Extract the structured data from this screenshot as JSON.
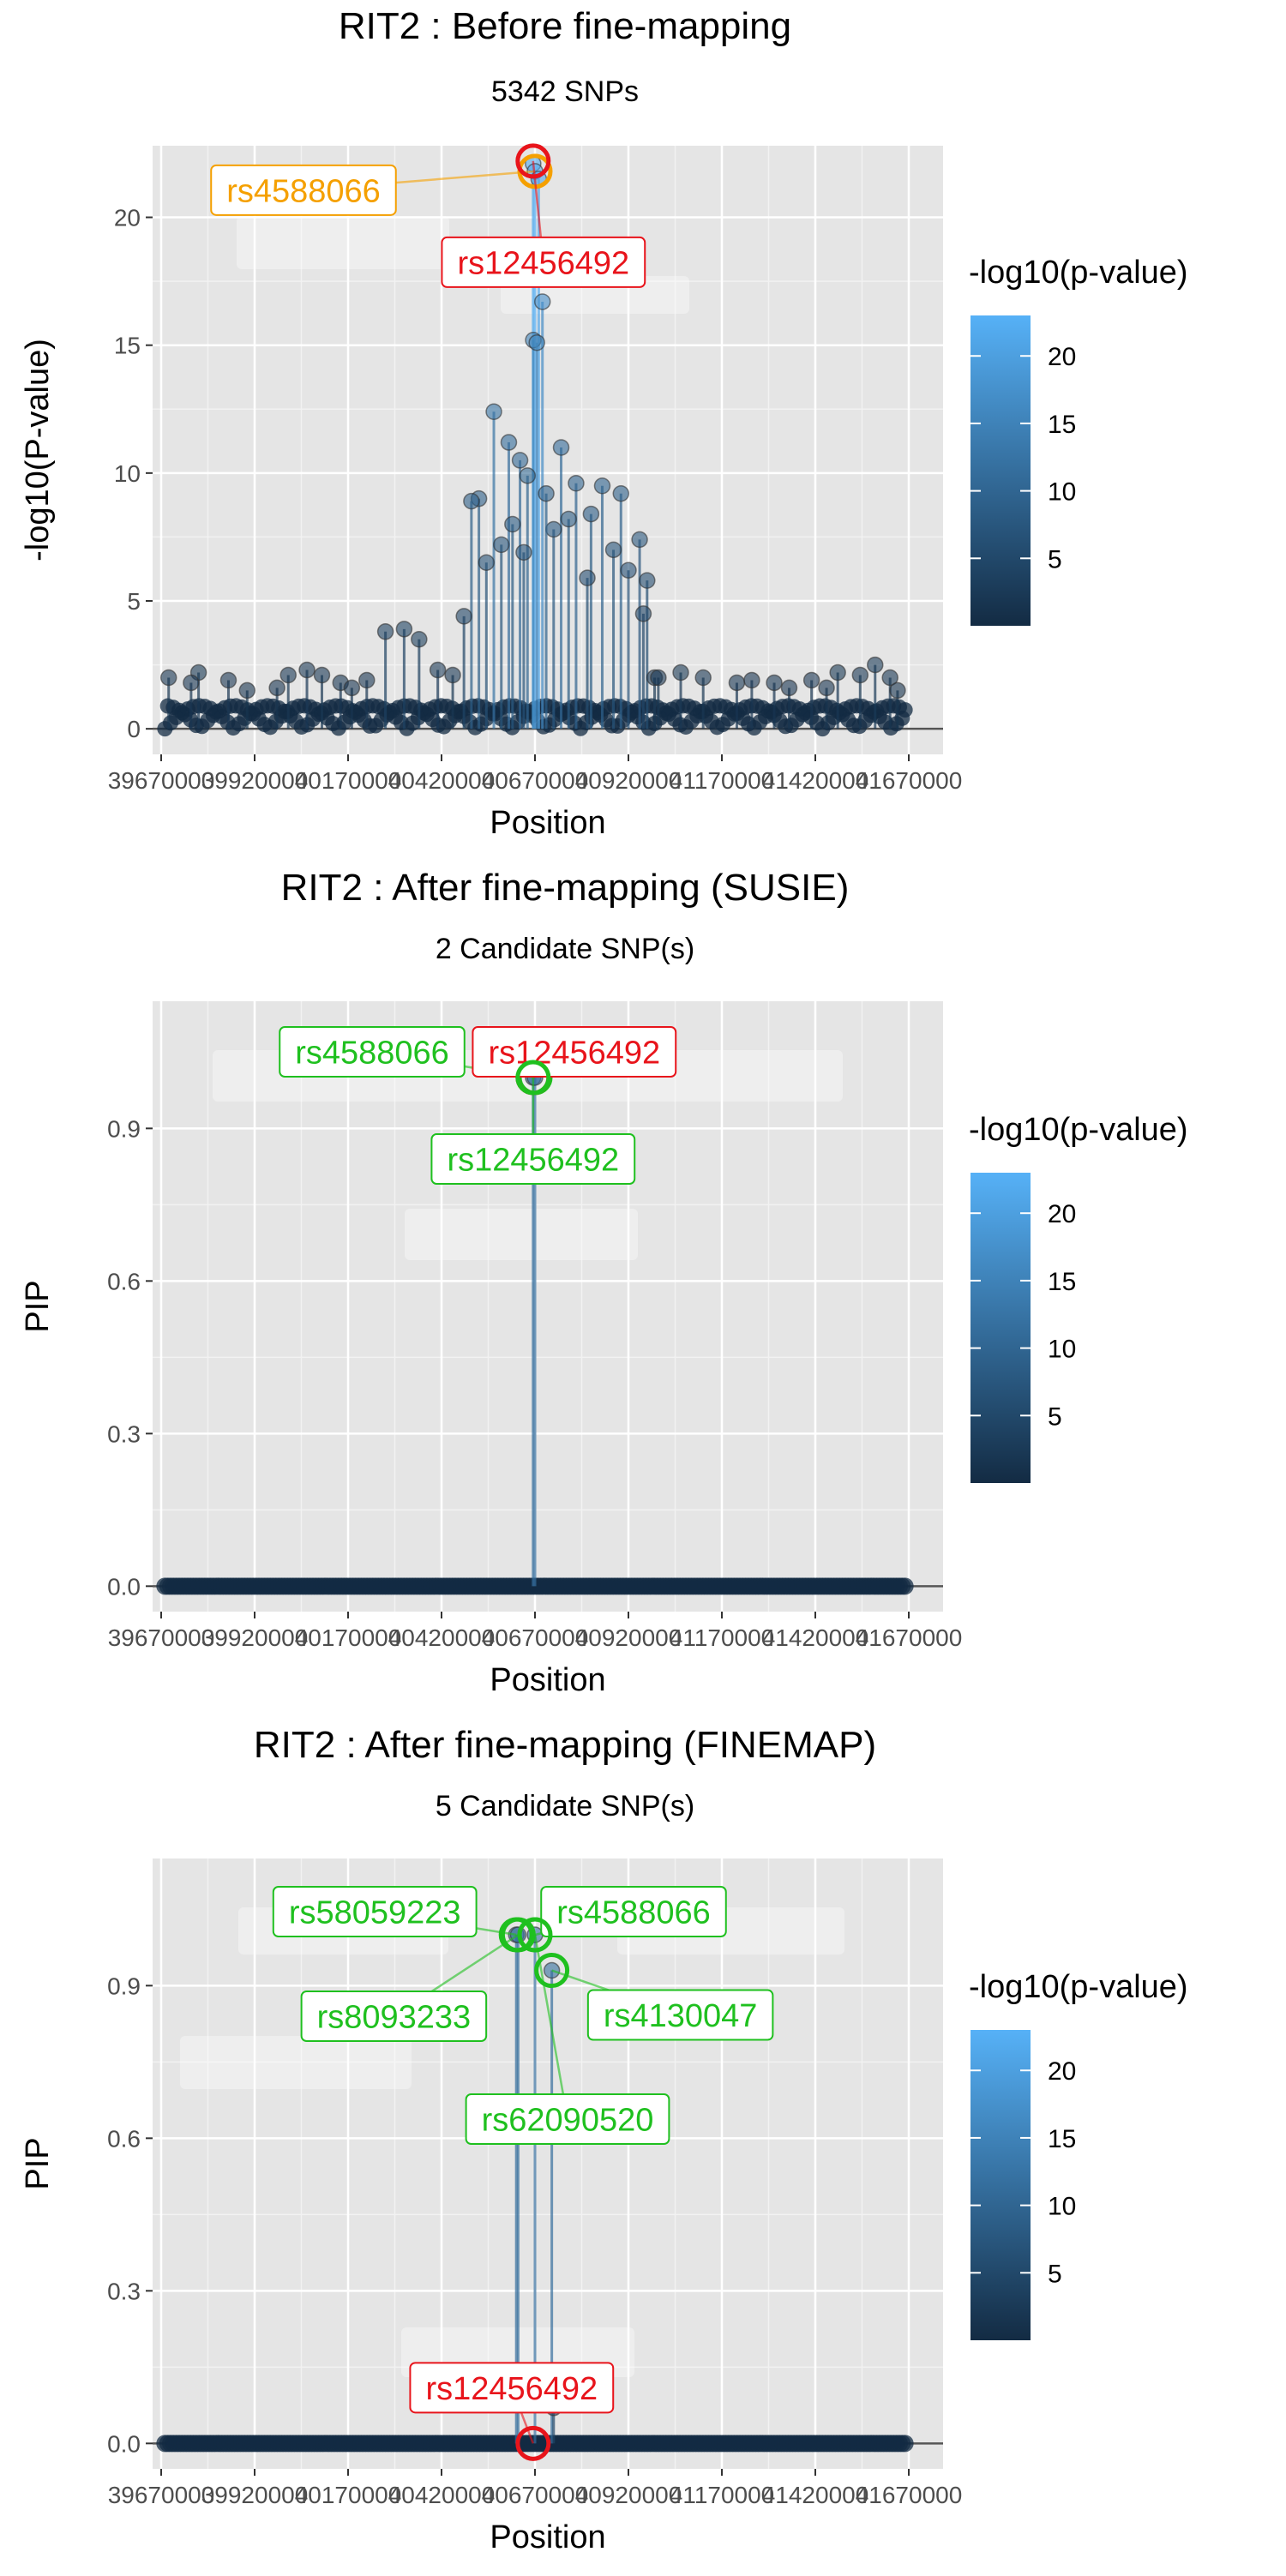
{
  "colors": {
    "panel_bg": "#e5e5e5",
    "grid": "#ffffff",
    "low": "#132b43",
    "high": "#56b1f7",
    "orange": "#f5a000",
    "red": "#e8141b",
    "green": "#1fc01f"
  },
  "chart_data": [
    {
      "type": "scatter",
      "title": "RIT2 : Before fine-mapping",
      "subtitle": "5342 SNPs",
      "xlabel": "Position",
      "ylabel": "-log10(P-value)",
      "xlim": [
        39670000,
        41670000
      ],
      "ylim": [
        -1.0,
        22.8
      ],
      "x_ticks": [
        39670000,
        39920000,
        40170000,
        40420000,
        40670000,
        40920000,
        41170000,
        41420000,
        41670000
      ],
      "x_tick_labels": [
        "39670000",
        "39920000",
        "40170000",
        "40420000",
        "40670000",
        "40920000",
        "41170000",
        "41420000",
        "41670000"
      ],
      "y_ticks": [
        0,
        5,
        10,
        15,
        20
      ],
      "y_tick_labels": [
        "0",
        "5",
        "10",
        "15",
        "20"
      ],
      "series": [
        {
          "points": [
            [
              40665000,
              22.1
            ],
            [
              40670000,
              21.8
            ],
            [
              40680000,
              21.5
            ],
            [
              40690000,
              16.7
            ],
            [
              40665500,
              15.2
            ],
            [
              40675000,
              15.1
            ],
            [
              40560000,
              12.4
            ],
            [
              40600000,
              11.2
            ],
            [
              40740000,
              11.0
            ],
            [
              40630000,
              10.5
            ],
            [
              40780000,
              9.6
            ],
            [
              40850000,
              9.5
            ],
            [
              40900000,
              9.2
            ],
            [
              40520000,
              9.0
            ],
            [
              40500000,
              8.9
            ],
            [
              40820000,
              8.4
            ],
            [
              40950000,
              7.4
            ],
            [
              40540000,
              6.5
            ],
            [
              40970000,
              5.8
            ],
            [
              40720000,
              7.8
            ],
            [
              40650000,
              9.9
            ],
            [
              40610000,
              8.0
            ],
            [
              40760000,
              8.2
            ],
            [
              40580000,
              7.2
            ],
            [
              40880000,
              7.0
            ],
            [
              40920000,
              6.2
            ],
            [
              40700000,
              9.2
            ],
            [
              40640000,
              6.9
            ],
            [
              40810000,
              5.9
            ],
            [
              40480000,
              4.4
            ],
            [
              40960000,
              4.5
            ],
            [
              40990000,
              2.0
            ],
            [
              39690000,
              2.0
            ],
            [
              39770000,
              2.2
            ],
            [
              39750000,
              1.8
            ],
            [
              39850000,
              1.9
            ],
            [
              39900000,
              1.5
            ],
            [
              39980000,
              1.6
            ],
            [
              40010000,
              2.1
            ],
            [
              40060000,
              2.3
            ],
            [
              40100000,
              2.1
            ],
            [
              40150000,
              1.8
            ],
            [
              40180000,
              1.6
            ],
            [
              40220000,
              1.9
            ],
            [
              40270000,
              3.8
            ],
            [
              40320000,
              3.9
            ],
            [
              40360000,
              3.5
            ],
            [
              40410000,
              2.3
            ],
            [
              40450000,
              2.1
            ],
            [
              41000000,
              2.0
            ],
            [
              41060000,
              2.2
            ],
            [
              41120000,
              2.0
            ],
            [
              41210000,
              1.8
            ],
            [
              41250000,
              1.9
            ],
            [
              41310000,
              1.8
            ],
            [
              41350000,
              1.6
            ],
            [
              41410000,
              1.9
            ],
            [
              41450000,
              1.6
            ],
            [
              41480000,
              2.2
            ],
            [
              41540000,
              2.1
            ],
            [
              41580000,
              2.5
            ],
            [
              41620000,
              2.0
            ],
            [
              41640000,
              1.5
            ]
          ]
        }
      ],
      "labels": [
        {
          "text": "rs4588066",
          "x": 40670000,
          "y": 21.8,
          "color": "orange"
        },
        {
          "text": "rs12456492",
          "x": 40665000,
          "y": 22.2,
          "color": "red"
        }
      ],
      "legend": {
        "title": "-log10(p-value)",
        "ticks": [
          "5",
          "10",
          "15",
          "20"
        ],
        "tick_values": [
          5,
          10,
          15,
          20
        ],
        "range": [
          0,
          23
        ],
        "position": "right"
      }
    },
    {
      "type": "scatter",
      "title": "RIT2 : After fine-mapping (SUSIE)",
      "subtitle": "2 Candidate SNP(s)",
      "xlabel": "Position",
      "ylabel": "PIP",
      "xlim": [
        39670000,
        41670000
      ],
      "ylim": [
        -0.05,
        1.15
      ],
      "x_ticks": [
        39670000,
        39920000,
        40170000,
        40420000,
        40670000,
        40920000,
        41170000,
        41420000,
        41670000
      ],
      "x_tick_labels": [
        "39670000",
        "39920000",
        "40170000",
        "40420000",
        "40670000",
        "40920000",
        "41170000",
        "41420000",
        "41670000"
      ],
      "y_ticks": [
        0.0,
        0.3,
        0.6,
        0.9
      ],
      "y_tick_labels": [
        "0.0",
        "0.3",
        "0.6",
        "0.9"
      ],
      "series": [
        {
          "points": [
            [
              40665000,
              1.0
            ],
            [
              40670000,
              1.0
            ]
          ]
        }
      ],
      "labels": [
        {
          "text": "rs4588066",
          "x": 40670000,
          "y": 1.0,
          "color": "green"
        },
        {
          "text": "rs12456492",
          "x": 40665000,
          "y": 1.0,
          "color": "red"
        },
        {
          "text": "rs12456492",
          "x": 40665000,
          "y": 1.0,
          "color": "green"
        }
      ],
      "legend": {
        "title": "-log10(p-value)",
        "ticks": [
          "5",
          "10",
          "15",
          "20"
        ],
        "tick_values": [
          5,
          10,
          15,
          20
        ],
        "range": [
          0,
          23
        ],
        "position": "right"
      }
    },
    {
      "type": "scatter",
      "title": "RIT2 : After fine-mapping (FINEMAP)",
      "subtitle": "5 Candidate SNP(s)",
      "xlabel": "Position",
      "ylabel": "PIP",
      "xlim": [
        39670000,
        41670000
      ],
      "ylim": [
        -0.05,
        1.15
      ],
      "x_ticks": [
        39670000,
        39920000,
        40170000,
        40420000,
        40670000,
        40920000,
        41170000,
        41420000,
        41670000
      ],
      "x_tick_labels": [
        "39670000",
        "39920000",
        "40170000",
        "40420000",
        "40670000",
        "40920000",
        "41170000",
        "41420000",
        "41670000"
      ],
      "y_ticks": [
        0.0,
        0.3,
        0.6,
        0.9
      ],
      "y_tick_labels": [
        "0.0",
        "0.3",
        "0.6",
        "0.9"
      ],
      "series": [
        {
          "points": [
            [
              40620000,
              1.0
            ],
            [
              40625000,
              1.0
            ],
            [
              40670000,
              1.0
            ],
            [
              40715000,
              0.93
            ],
            [
              40720000,
              0.07
            ]
          ]
        }
      ],
      "labels": [
        {
          "text": "rs58059223",
          "x": 40620000,
          "y": 1.0,
          "color": "green"
        },
        {
          "text": "rs4588066",
          "x": 40670000,
          "y": 1.0,
          "color": "green"
        },
        {
          "text": "rs8093233",
          "x": 40625000,
          "y": 1.0,
          "color": "green"
        },
        {
          "text": "rs4130047",
          "x": 40715000,
          "y": 0.93,
          "color": "green"
        },
        {
          "text": "rs62090520",
          "x": 40670000,
          "y": 1.0,
          "color": "green"
        },
        {
          "text": "rs12456492",
          "x": 40665000,
          "y": 0.0,
          "color": "red"
        }
      ],
      "legend": {
        "title": "-log10(p-value)",
        "ticks": [
          "5",
          "10",
          "15",
          "20"
        ],
        "tick_values": [
          5,
          10,
          15,
          20
        ],
        "range": [
          0,
          23
        ],
        "position": "right"
      }
    }
  ]
}
